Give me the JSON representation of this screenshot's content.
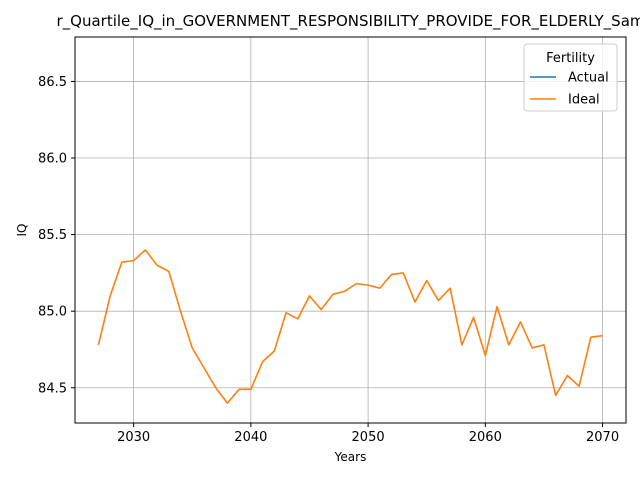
{
  "chart_data": {
    "type": "line",
    "title": "r_Quartile_IQ_in_GOVERNMENT_RESPONSIBILITY_PROVIDE_FOR_ELDERLY_Sam",
    "xlabel": "Years",
    "ylabel": "IQ",
    "xlim": [
      2025,
      2072
    ],
    "ylim": [
      84.27,
      86.79
    ],
    "xticks": [
      2030,
      2040,
      2050,
      2060,
      2070
    ],
    "yticks": [
      84.5,
      85.0,
      85.5,
      86.0,
      86.5
    ],
    "xtick_labels": [
      "2030",
      "2040",
      "2050",
      "2060",
      "2070"
    ],
    "ytick_labels": [
      "84.5",
      "85.0",
      "85.5",
      "86.0",
      "86.5"
    ],
    "grid": true,
    "legend": {
      "title": "Fertility",
      "placement": "top-right",
      "entries": [
        "Actual",
        "Ideal"
      ]
    },
    "series": [
      {
        "name": "Actual",
        "color": "#1f77b4",
        "x": [],
        "y": []
      },
      {
        "name": "Ideal",
        "color": "#ff7f0e",
        "x": [
          2027,
          2028,
          2029,
          2030,
          2031,
          2032,
          2033,
          2034,
          2035,
          2036,
          2037,
          2038,
          2039,
          2040,
          2041,
          2042,
          2043,
          2044,
          2045,
          2046,
          2047,
          2048,
          2049,
          2050,
          2051,
          2052,
          2053,
          2054,
          2055,
          2056,
          2057,
          2058,
          2059,
          2060,
          2061,
          2062,
          2063,
          2064,
          2065,
          2066,
          2067,
          2068,
          2069,
          2070
        ],
        "y": [
          84.78,
          85.1,
          85.32,
          85.33,
          85.4,
          85.3,
          85.26,
          85.0,
          84.76,
          84.63,
          84.5,
          84.4,
          84.49,
          84.49,
          84.67,
          84.74,
          84.99,
          84.95,
          85.1,
          85.01,
          85.11,
          85.13,
          85.18,
          85.17,
          85.15,
          85.24,
          85.25,
          85.06,
          85.2,
          85.07,
          85.15,
          84.78,
          84.96,
          84.71,
          85.03,
          84.78,
          84.93,
          84.76,
          84.78,
          84.45,
          84.58,
          84.51,
          84.83,
          84.84
        ]
      }
    ]
  }
}
